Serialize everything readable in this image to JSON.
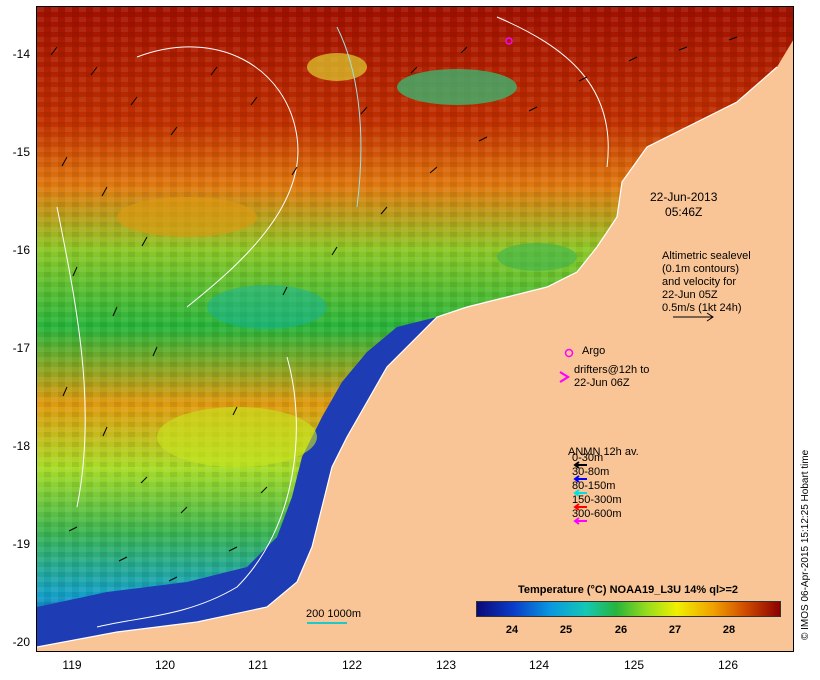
{
  "date_time": {
    "date": "22-Jun-2013",
    "time": "05:46Z"
  },
  "altimetry_note": [
    "Altimetric sealevel",
    "(0.1m contours)",
    "and velocity for",
    "22-Jun 05Z",
    "0.5m/s (1kt 24h)"
  ],
  "argo_label": "Argo",
  "drifter_label": [
    "drifters@12h to",
    "22-Jun 06Z"
  ],
  "mooring_legend": {
    "title": "ANMN 12h av.",
    "items": [
      {
        "label": "0-30m",
        "color": "#000000"
      },
      {
        "label": "30-80m",
        "color": "#0000ff"
      },
      {
        "label": "80-150m",
        "color": "#00e0e0"
      },
      {
        "label": "150-300m",
        "color": "#ff0000"
      },
      {
        "label": "300-600m",
        "color": "#ff00ff"
      }
    ]
  },
  "colorbar": {
    "title": "Temperature (°C) NOAA19_L3U 14% ql>=2",
    "ticks": [
      "24",
      "25",
      "26",
      "27",
      "28"
    ]
  },
  "scale_label": "200  1000m",
  "credit": "© IMOS 06-Apr-2015 15:12:25 Hobart time",
  "axes": {
    "lat_ticks": [
      "-14",
      "-15",
      "-16",
      "-17",
      "-18",
      "-19",
      "-20"
    ],
    "lon_ticks": [
      "119",
      "120",
      "121",
      "122",
      "123",
      "124",
      "125",
      "126"
    ]
  },
  "colors": {
    "land": "#f9c596",
    "warm": "#a01000",
    "cold": "#0a1a8c"
  }
}
